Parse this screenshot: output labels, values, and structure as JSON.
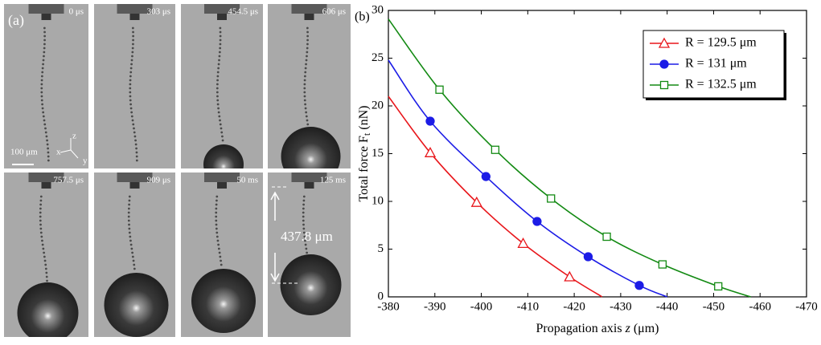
{
  "panel_a": {
    "label": "(a)",
    "frames": [
      "0 μs",
      "303 μs",
      "454.5 μs",
      "606 μs",
      "757.5 μs",
      "909 μs",
      "50 ms",
      "125 ms"
    ],
    "scale_bar": "100 μm",
    "axes": [
      "x",
      "y",
      "z"
    ],
    "distance": "437.8 μm"
  },
  "chart_data": {
    "type": "line",
    "title": "(b)",
    "xlabel": {
      "pre": "Propagation axis ",
      "var": "z",
      "post": " (μm)"
    },
    "ylabel": {
      "main": "Total force  F",
      "sub": "t",
      "unit": " (nN)"
    },
    "xlim": [
      -380,
      -470
    ],
    "xticks": [
      -380,
      -390,
      -400,
      -410,
      -420,
      -430,
      -440,
      -450,
      -460,
      -470
    ],
    "ylim": [
      0,
      30
    ],
    "yticks": [
      0,
      5,
      10,
      15,
      20,
      25,
      30
    ],
    "legend": "upper right",
    "series": [
      {
        "name": "R = 129.5 μm",
        "color": "#e8161b",
        "marker": "triangle",
        "line_x": [
          -380,
          -389,
          -399,
          -409,
          -419,
          -426
        ],
        "line_values": [
          21,
          15.1,
          9.9,
          5.6,
          2.1,
          0
        ],
        "marker_x": [
          -389,
          -399,
          -409,
          -419
        ],
        "marker_values": [
          15.1,
          9.9,
          5.6,
          2.1
        ]
      },
      {
        "name": "R = 131 μm",
        "color": "#1c1ce6",
        "marker": "circle",
        "line_x": [
          -380,
          -389,
          -401,
          -412,
          -423,
          -434,
          -440
        ],
        "line_values": [
          24.8,
          18.4,
          12.6,
          7.9,
          4.2,
          1.2,
          0
        ],
        "marker_x": [
          -389,
          -401,
          -412,
          -423,
          -434
        ],
        "marker_values": [
          18.4,
          12.6,
          7.9,
          4.2,
          1.2
        ]
      },
      {
        "name": "R = 132.5 μm",
        "color": "#138a13",
        "marker": "square",
        "line_x": [
          -380,
          -391,
          -403,
          -415,
          -427,
          -439,
          -451,
          -458
        ],
        "line_values": [
          29.1,
          21.7,
          15.4,
          10.3,
          6.3,
          3.4,
          1.1,
          0
        ],
        "marker_x": [
          -391,
          -403,
          -415,
          -427,
          -439,
          -451
        ],
        "marker_values": [
          21.7,
          15.4,
          10.3,
          6.3,
          3.4,
          1.1
        ]
      }
    ]
  }
}
